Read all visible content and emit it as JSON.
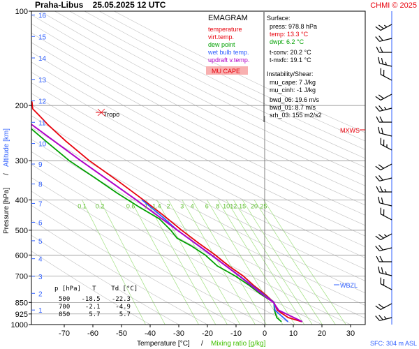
{
  "header": {
    "station_date": "Praha-Libus    25.05.2025 12 UTC",
    "copyright": "CHMI © 2025"
  },
  "legend": {
    "title": "EMAGRAM",
    "items": [
      {
        "label": "temperature",
        "color": "#e8000b"
      },
      {
        "label": "virt.temp.",
        "color": "#e8000b"
      },
      {
        "label": "dew point",
        "color": "#00a000"
      },
      {
        "label": "wet bulb temp.",
        "color": "#3060ff"
      },
      {
        "label": "updraft v.temp.",
        "color": "#b000c8"
      }
    ],
    "badge": "MU CAPE",
    "badge_color": "#f8b0b0"
  },
  "info": {
    "surface_title": "Surface:",
    "press": "press: 978.8 hPa",
    "temp": "temp: 13.3 °C",
    "dwpt": "dwpt: 6.2 °C",
    "tconv": "t-conv: 20.2 °C",
    "tmxfc": "t-mxfc: 19.1 °C",
    "inst_title": "Instability/Shear:",
    "mu_cape": "mu_cape: 7 J/kg",
    "mu_cinh": "mu_cinh: -1 J/kg",
    "bwd06": "bwd_06: 19.6 m/s",
    "bwd01": "bwd_01: 8.7 m/s",
    "srh03": "srh_03: 155 m2/s2"
  },
  "table": {
    "header": "p [hPa]   T    Td [°C]",
    "rows": [
      "500   -18.5   -22.3",
      "700    -2.1    -4.9",
      "850     5.7     5.7"
    ]
  },
  "labels": {
    "tropo": "Tropo",
    "mxws": "MXWS",
    "wbzl": "WBZL",
    "sfc": "SFC: 304 m ASL",
    "xlabel_temp": "Temperature [°C]",
    "xlabel_sep": "/",
    "xlabel_mix": "Mixing ratio [g/kg]",
    "ylabel_press": "Pressure [hPa]",
    "ylabel_sep": "/",
    "ylabel_alt": "Altitude [km]"
  },
  "colors": {
    "temperature": "#e8000b",
    "dewpoint": "#00a000",
    "wetbulb": "#3060ff",
    "updraft": "#b000c8",
    "dry_adiabat": "#c0c0c0",
    "mixing_ratio": "#a0e080",
    "altitude": "#3060ff"
  },
  "chart_data": {
    "type": "line",
    "y_axis": "pressure_hPa_log",
    "ylim": [
      1000,
      100
    ],
    "xlim": [
      -80,
      40
    ],
    "xticks": [
      -70,
      -60,
      -50,
      -40,
      -30,
      -20,
      -10,
      0,
      10,
      20,
      30
    ],
    "pressure_ticks": [
      100,
      200,
      300,
      400,
      500,
      600,
      700,
      850,
      925,
      1000
    ],
    "altitude_ticks_km": [
      1,
      2,
      3,
      4,
      5,
      6,
      7,
      8,
      9,
      10,
      11,
      12,
      13,
      14,
      15,
      16
    ],
    "mixing_ratio_labels": [
      "0.1",
      "0.2",
      "0.6",
      "1",
      "1.4",
      "2",
      "3",
      "4",
      "6",
      "8",
      "10",
      "12",
      "15",
      "20",
      "25"
    ],
    "series": [
      {
        "name": "temperature",
        "points": [
          [
            979,
            13.3
          ],
          [
            950,
            9
          ],
          [
            900,
            6
          ],
          [
            850,
            5.7
          ],
          [
            800,
            3.5
          ],
          [
            750,
            0.5
          ],
          [
            700,
            -2.1
          ],
          [
            650,
            -6
          ],
          [
            600,
            -9.5
          ],
          [
            550,
            -14
          ],
          [
            500,
            -18.5
          ],
          [
            450,
            -23
          ],
          [
            400,
            -28.5
          ],
          [
            350,
            -35
          ],
          [
            300,
            -43
          ],
          [
            260,
            -49
          ],
          [
            230,
            -53.5
          ],
          [
            215,
            -55.5
          ],
          [
            205,
            -57
          ],
          [
            195,
            -56.5
          ],
          [
            180,
            -58
          ],
          [
            160,
            -58.5
          ],
          [
            140,
            -58
          ],
          [
            120,
            -59
          ],
          [
            100,
            -58.5
          ]
        ]
      },
      {
        "name": "dew point",
        "points": [
          [
            979,
            6.2
          ],
          [
            950,
            5
          ],
          [
            900,
            5
          ],
          [
            850,
            5.7
          ],
          [
            800,
            2
          ],
          [
            750,
            -1
          ],
          [
            700,
            -4.9
          ],
          [
            650,
            -10
          ],
          [
            600,
            -13
          ],
          [
            560,
            -17
          ],
          [
            530,
            -21
          ],
          [
            500,
            -22.3
          ],
          [
            460,
            -25
          ],
          [
            420,
            -31
          ],
          [
            380,
            -37
          ],
          [
            340,
            -43
          ],
          [
            300,
            -50
          ],
          [
            260,
            -56
          ],
          [
            230,
            -61
          ],
          [
            210,
            -66
          ],
          [
            200,
            -72
          ],
          [
            190,
            -78
          ]
        ]
      },
      {
        "name": "wet bulb temp.",
        "points": [
          [
            979,
            8.5
          ],
          [
            900,
            5.2
          ],
          [
            850,
            5.7
          ],
          [
            700,
            -3.3
          ],
          [
            600,
            -11
          ],
          [
            500,
            -20
          ],
          [
            450,
            -24
          ],
          [
            400,
            -29
          ]
        ]
      },
      {
        "name": "updraft v.temp.",
        "points": [
          [
            979,
            13.5
          ],
          [
            900,
            6.5
          ],
          [
            850,
            5.5
          ],
          [
            800,
            2.5
          ],
          [
            700,
            -3.5
          ],
          [
            600,
            -10.8
          ],
          [
            500,
            -20
          ],
          [
            400,
            -31
          ],
          [
            300,
            -46
          ],
          [
            250,
            -55
          ],
          [
            200,
            -66
          ],
          [
            180,
            -71
          ],
          [
            160,
            -77
          ]
        ]
      }
    ]
  }
}
